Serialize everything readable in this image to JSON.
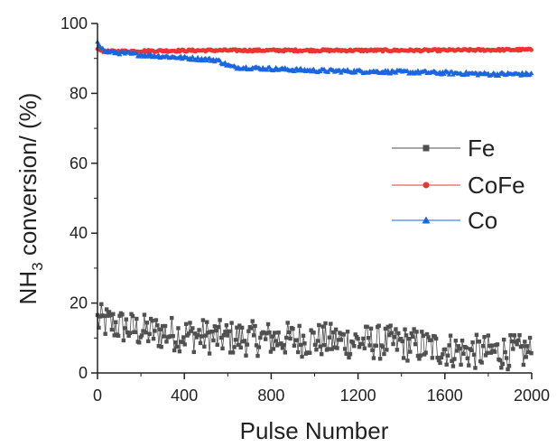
{
  "chart_data": {
    "type": "scatter",
    "xlabel": "Pulse Number",
    "ylabel": {
      "main": "NH",
      "sub": "3",
      "rest": " conversion/ (%)"
    },
    "xlim": [
      0,
      2000
    ],
    "ylim": [
      0,
      100
    ],
    "x_ticks": [
      "0",
      "400",
      "800",
      "1200",
      "1600",
      "2000"
    ],
    "y_ticks": [
      "0",
      "20",
      "40",
      "60",
      "80",
      "100"
    ],
    "grid": false,
    "legend_placement": "right-middle",
    "series": [
      {
        "name": "Fe",
        "color": "#505050",
        "marker": "square",
        "x_range": [
          0,
          2000
        ],
        "approx_mean": [
          [
            0,
            15
          ],
          [
            200,
            12
          ],
          [
            600,
            10
          ],
          [
            1000,
            9.5
          ],
          [
            1400,
            8.5
          ],
          [
            1700,
            6
          ],
          [
            2000,
            6
          ]
        ],
        "noise_band": 5
      },
      {
        "name": "CoFe",
        "color": "#ee3333",
        "marker": "circle",
        "x_range": [
          0,
          2000
        ],
        "approx_mean": [
          [
            0,
            93
          ],
          [
            30,
            92
          ],
          [
            500,
            92.3
          ],
          [
            1000,
            92.3
          ],
          [
            1500,
            92.3
          ],
          [
            2000,
            92.5
          ]
        ],
        "noise_band": 0.3
      },
      {
        "name": "Co",
        "color": "#1a66e0",
        "marker": "triangle",
        "x_range": [
          0,
          2000
        ],
        "approx_mean": [
          [
            0,
            95
          ],
          [
            30,
            92
          ],
          [
            200,
            91
          ],
          [
            550,
            89.5
          ],
          [
            620,
            87.5
          ],
          [
            1000,
            86.5
          ],
          [
            1500,
            86
          ],
          [
            1800,
            85.5
          ],
          [
            2000,
            85.5
          ]
        ],
        "noise_band": 0.5
      }
    ]
  }
}
